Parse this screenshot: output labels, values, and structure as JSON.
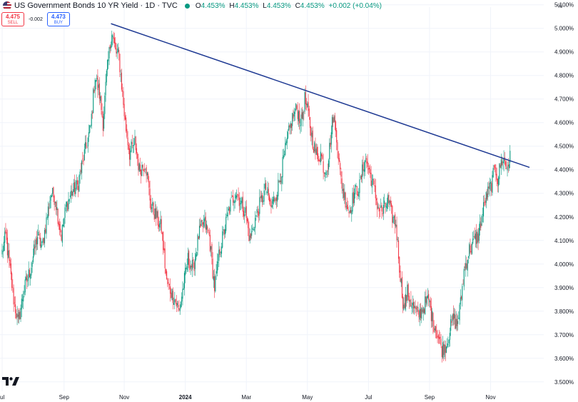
{
  "legend": {
    "title": "US Government Bonds 10 YR Yield · 1D · TVC",
    "open_label": "O",
    "open": "4.453%",
    "high_label": "H",
    "high": "4.453%",
    "low_label": "L",
    "low": "4.453%",
    "close_label": "C",
    "close": "4.453%",
    "change": "+0.002 (+0.04%)"
  },
  "trade": {
    "sell_price": "4.475",
    "sell_label": "SELL",
    "spread": "-0.002",
    "buy_price": "4.473",
    "buy_label": "BUY"
  },
  "colors": {
    "up": "#089981",
    "down": "#f23645",
    "trendline": "#1f3a93",
    "grid": "#f0f3fa",
    "axis_text": "#131722"
  },
  "icons": {
    "flag": "us-flag-icon",
    "logo": "tradingview-logo-icon"
  },
  "chart_data": {
    "type": "candlestick",
    "title": "US Government Bonds 10 YR Yield",
    "unit": "%",
    "ylim": [
      3.46,
      5.09
    ],
    "y_ticks": [
      "5.100%",
      "5.000%",
      "4.900%",
      "4.800%",
      "4.700%",
      "4.600%",
      "4.500%",
      "4.400%",
      "4.300%",
      "4.200%",
      "4.100%",
      "4.000%",
      "3.900%",
      "3.800%",
      "3.700%",
      "3.600%",
      "3.500%"
    ],
    "x_ticks": [
      "ul",
      "Sep",
      "Nov",
      "2024",
      "Mar",
      "May",
      "Jul",
      "Sep",
      "Nov"
    ],
    "x_tick_index": [
      0,
      70,
      138,
      207,
      276,
      345,
      414,
      483,
      552
    ],
    "candle_count": 575,
    "anchors": [
      [
        0,
        4.05
      ],
      [
        4,
        4.12
      ],
      [
        13,
        3.85
      ],
      [
        18,
        3.75
      ],
      [
        24,
        3.88
      ],
      [
        32,
        3.98
      ],
      [
        40,
        4.12
      ],
      [
        45,
        4.07
      ],
      [
        52,
        4.23
      ],
      [
        55,
        4.3
      ],
      [
        60,
        4.28
      ],
      [
        64,
        4.18
      ],
      [
        67,
        4.12
      ],
      [
        72,
        4.24
      ],
      [
        78,
        4.3
      ],
      [
        85,
        4.33
      ],
      [
        92,
        4.45
      ],
      [
        100,
        4.58
      ],
      [
        105,
        4.8
      ],
      [
        110,
        4.72
      ],
      [
        114,
        4.6
      ],
      [
        118,
        4.8
      ],
      [
        124,
        4.99
      ],
      [
        128,
        4.9
      ],
      [
        132,
        4.88
      ],
      [
        135,
        4.76
      ],
      [
        139,
        4.6
      ],
      [
        144,
        4.47
      ],
      [
        150,
        4.52
      ],
      [
        155,
        4.4
      ],
      [
        162,
        4.43
      ],
      [
        168,
        4.25
      ],
      [
        174,
        4.2
      ],
      [
        180,
        4.15
      ],
      [
        186,
        3.92
      ],
      [
        194,
        3.86
      ],
      [
        200,
        3.8
      ],
      [
        205,
        3.91
      ],
      [
        210,
        4.02
      ],
      [
        216,
        3.98
      ],
      [
        222,
        4.12
      ],
      [
        228,
        4.18
      ],
      [
        234,
        4.12
      ],
      [
        240,
        3.9
      ],
      [
        246,
        4.06
      ],
      [
        252,
        4.16
      ],
      [
        258,
        4.25
      ],
      [
        264,
        4.31
      ],
      [
        270,
        4.26
      ],
      [
        275,
        4.22
      ],
      [
        280,
        4.1
      ],
      [
        286,
        4.19
      ],
      [
        292,
        4.26
      ],
      [
        298,
        4.32
      ],
      [
        304,
        4.24
      ],
      [
        310,
        4.3
      ],
      [
        316,
        4.4
      ],
      [
        322,
        4.52
      ],
      [
        328,
        4.62
      ],
      [
        333,
        4.66
      ],
      [
        338,
        4.6
      ],
      [
        342,
        4.7
      ],
      [
        346,
        4.63
      ],
      [
        351,
        4.52
      ],
      [
        356,
        4.45
      ],
      [
        360,
        4.47
      ],
      [
        364,
        4.4
      ],
      [
        368,
        4.42
      ],
      [
        374,
        4.63
      ],
      [
        378,
        4.55
      ],
      [
        382,
        4.38
      ],
      [
        386,
        4.3
      ],
      [
        392,
        4.22
      ],
      [
        398,
        4.3
      ],
      [
        404,
        4.33
      ],
      [
        410,
        4.45
      ],
      [
        416,
        4.38
      ],
      [
        420,
        4.32
      ],
      [
        425,
        4.24
      ],
      [
        430,
        4.22
      ],
      [
        436,
        4.27
      ],
      [
        440,
        4.21
      ],
      [
        445,
        4.17
      ],
      [
        450,
        3.95
      ],
      [
        454,
        3.81
      ],
      [
        458,
        3.88
      ],
      [
        464,
        3.82
      ],
      [
        470,
        3.78
      ],
      [
        476,
        3.82
      ],
      [
        482,
        3.85
      ],
      [
        486,
        3.77
      ],
      [
        492,
        3.7
      ],
      [
        497,
        3.64
      ],
      [
        502,
        3.66
      ],
      [
        506,
        3.72
      ],
      [
        510,
        3.77
      ],
      [
        514,
        3.74
      ],
      [
        518,
        3.83
      ],
      [
        522,
        3.97
      ],
      [
        528,
        4.06
      ],
      [
        534,
        4.1
      ],
      [
        538,
        4.12
      ],
      [
        542,
        4.2
      ],
      [
        546,
        4.27
      ],
      [
        550,
        4.31
      ],
      [
        554,
        4.35
      ],
      [
        557,
        4.42
      ],
      [
        560,
        4.36
      ],
      [
        563,
        4.42
      ],
      [
        566,
        4.45
      ],
      [
        570,
        4.41
      ],
      [
        574,
        4.45
      ]
    ],
    "trendline": {
      "start": {
        "index": 123,
        "value": 5.02
      },
      "end": {
        "index": 596,
        "value": 4.41
      }
    }
  }
}
